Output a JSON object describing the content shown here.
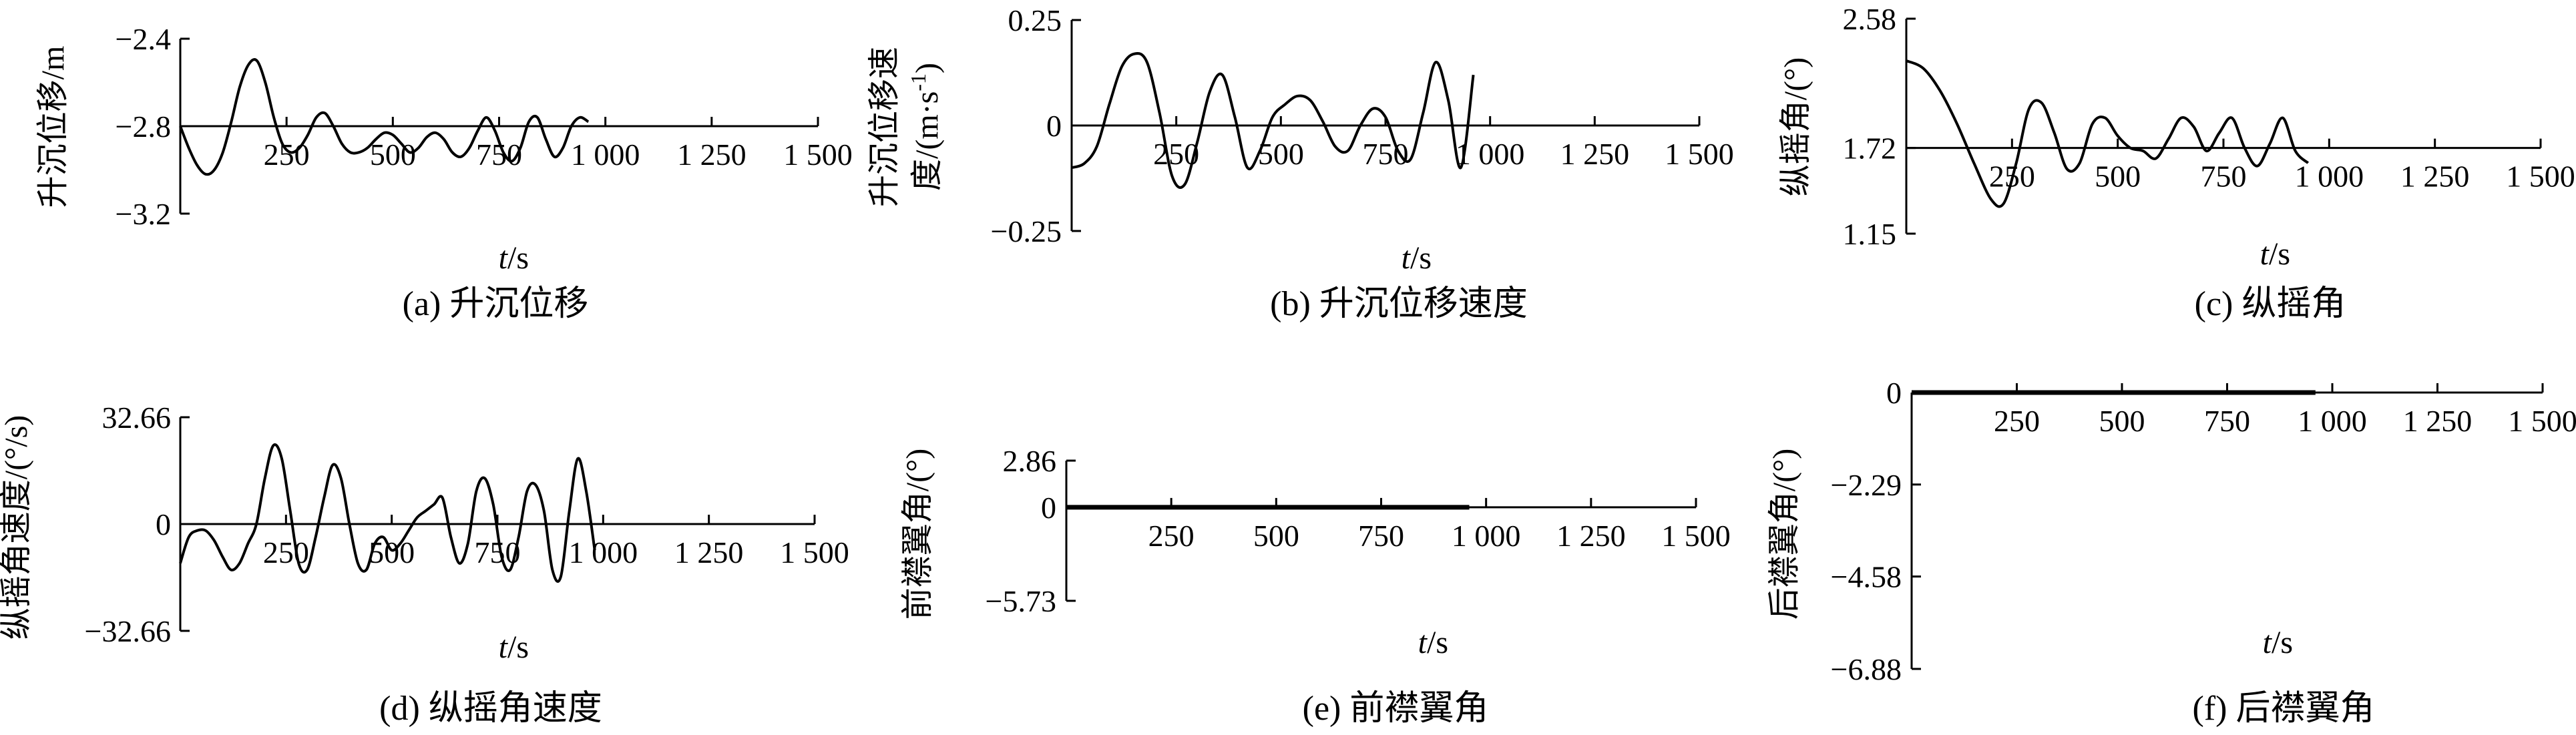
{
  "chart_data": [
    {
      "type": "line",
      "panel_caption": "(a) 升沉位移",
      "ylabel": "升沉位移/m",
      "xlabel_italic": "t",
      "xlabel_unit": "/s",
      "yticks": [
        "-2.4",
        "-2.8",
        "-3.2"
      ],
      "ytick_values": [
        -2.4,
        -2.8,
        -3.2
      ],
      "ylim": [
        -3.2,
        -2.4
      ],
      "xaxis_at": -2.8,
      "xticks": [
        "250",
        "500",
        "750",
        "1 000",
        "1 250",
        "1 500"
      ],
      "xtick_values": [
        250,
        500,
        750,
        1000,
        1250,
        1500
      ],
      "xlim": [
        0,
        1500
      ],
      "series": [
        {
          "x": [
            0,
            20,
            40,
            60,
            80,
            100,
            120,
            140,
            160,
            180,
            200,
            220,
            240,
            260,
            280,
            300,
            320,
            340,
            360,
            380,
            400,
            420,
            440,
            460,
            480,
            500,
            520,
            540,
            560,
            580,
            600,
            620,
            640,
            660,
            680,
            700,
            720,
            740,
            760,
            780,
            800,
            820,
            840,
            860,
            880,
            900,
            920,
            940,
            960
          ],
          "y": [
            -2.8,
            -2.9,
            -2.98,
            -3.02,
            -3.0,
            -2.92,
            -2.78,
            -2.62,
            -2.52,
            -2.5,
            -2.6,
            -2.76,
            -2.88,
            -2.92,
            -2.9,
            -2.84,
            -2.76,
            -2.74,
            -2.8,
            -2.88,
            -2.92,
            -2.92,
            -2.9,
            -2.86,
            -2.83,
            -2.84,
            -2.88,
            -2.92,
            -2.9,
            -2.85,
            -2.83,
            -2.86,
            -2.92,
            -2.94,
            -2.9,
            -2.82,
            -2.76,
            -2.82,
            -2.92,
            -2.96,
            -2.9,
            -2.78,
            -2.76,
            -2.86,
            -2.94,
            -2.9,
            -2.8,
            -2.76,
            -2.78
          ]
        }
      ]
    },
    {
      "type": "line",
      "panel_caption": "(b) 升沉位移速度",
      "ylabel_line1": "升沉位移速",
      "ylabel_line2": "度/(m·s",
      "ylabel_sup": "-1",
      "ylabel_end": ")",
      "xlabel_italic": "t",
      "xlabel_unit": "/s",
      "yticks": [
        "0.25",
        "0",
        "-0.25"
      ],
      "ytick_values": [
        0.25,
        0,
        -0.25
      ],
      "ylim": [
        -0.25,
        0.25
      ],
      "xaxis_at": 0,
      "xticks": [
        "250",
        "500",
        "750",
        "1 000",
        "1 250",
        "1 500"
      ],
      "xtick_values": [
        250,
        500,
        750,
        1000,
        1250,
        1500
      ],
      "xlim": [
        0,
        1500
      ],
      "series": [
        {
          "x": [
            0,
            30,
            60,
            90,
            120,
            150,
            180,
            210,
            240,
            270,
            300,
            330,
            360,
            390,
            420,
            450,
            480,
            510,
            540,
            570,
            600,
            630,
            660,
            690,
            720,
            750,
            780,
            810,
            840,
            870,
            900,
            930,
            960
          ],
          "y": [
            -0.1,
            -0.09,
            -0.05,
            0.05,
            0.14,
            0.17,
            0.15,
            0.03,
            -0.12,
            -0.14,
            -0.04,
            0.08,
            0.12,
            0.02,
            -0.1,
            -0.06,
            0.02,
            0.05,
            0.07,
            0.06,
            0.01,
            -0.05,
            -0.06,
            0.0,
            0.04,
            0.02,
            -0.06,
            -0.08,
            0.03,
            0.15,
            0.06,
            -0.1,
            0.12
          ]
        }
      ]
    },
    {
      "type": "line",
      "panel_caption": "(c) 纵摇角",
      "ylabel": "纵摇角/(°)",
      "xlabel_italic": "t",
      "xlabel_unit": "/s",
      "yticks": [
        "2.58",
        "1.72",
        "1.15"
      ],
      "ytick_values": [
        2.58,
        1.72,
        1.15
      ],
      "ylim": [
        1.15,
        2.58
      ],
      "xaxis_at": 1.72,
      "xticks": [
        "250",
        "500",
        "750",
        "1 000",
        "1 250",
        "1 500"
      ],
      "xtick_values": [
        250,
        500,
        750,
        1000,
        1250,
        1500
      ],
      "xlim": [
        0,
        1500
      ],
      "series": [
        {
          "x": [
            0,
            40,
            80,
            120,
            160,
            200,
            230,
            260,
            290,
            320,
            350,
            380,
            410,
            440,
            470,
            500,
            530,
            560,
            590,
            620,
            650,
            680,
            710,
            740,
            770,
            800,
            830,
            860,
            890,
            920,
            950
          ],
          "y": [
            2.3,
            2.25,
            2.1,
            1.88,
            1.62,
            1.38,
            1.35,
            1.62,
            1.98,
            2.02,
            1.82,
            1.58,
            1.62,
            1.88,
            1.92,
            1.8,
            1.72,
            1.7,
            1.65,
            1.78,
            1.92,
            1.86,
            1.7,
            1.82,
            1.92,
            1.72,
            1.6,
            1.75,
            1.92,
            1.7,
            1.62
          ]
        }
      ]
    },
    {
      "type": "line",
      "panel_caption": "(d) 纵摇角速度",
      "ylabel": "纵摇角速度/(°/s)",
      "xlabel_italic": "t",
      "xlabel_unit": "/s",
      "yticks": [
        "32.66",
        "0",
        "-32.66"
      ],
      "ytick_values": [
        32.66,
        0,
        -32.66
      ],
      "ylim": [
        -32.66,
        32.66
      ],
      "xaxis_at": 0,
      "xticks": [
        "250",
        "500",
        "750",
        "1 000",
        "1 250",
        "1 500"
      ],
      "xtick_values": [
        250,
        500,
        750,
        1000,
        1250,
        1500
      ],
      "xlim": [
        0,
        1500
      ],
      "series": [
        {
          "x": [
            0,
            20,
            40,
            60,
            80,
            100,
            120,
            140,
            160,
            180,
            200,
            220,
            240,
            260,
            280,
            300,
            320,
            340,
            360,
            380,
            400,
            420,
            440,
            460,
            480,
            500,
            520,
            540,
            560,
            580,
            600,
            620,
            640,
            660,
            680,
            700,
            720,
            740,
            760,
            780,
            800,
            820,
            840,
            860,
            880,
            900,
            920,
            940,
            960,
            980
          ],
          "y": [
            -12,
            -4,
            -2,
            -2,
            -5,
            -10,
            -14,
            -12,
            -6,
            0,
            14,
            24,
            20,
            4,
            -12,
            -14,
            -4,
            8,
            18,
            14,
            0,
            -12,
            -14,
            -6,
            -4,
            -8,
            -6,
            -2,
            2,
            4,
            6,
            8,
            -4,
            -12,
            -6,
            10,
            14,
            6,
            -10,
            -14,
            -4,
            10,
            12,
            4,
            -14,
            -16,
            4,
            20,
            10,
            -8
          ]
        }
      ]
    },
    {
      "type": "line",
      "panel_caption": "(e) 前襟翼角",
      "ylabel": "前襟翼角/(°)",
      "xlabel_italic": "t",
      "xlabel_unit": "/s",
      "yticks": [
        "2.86",
        "0",
        "-5.73"
      ],
      "ytick_values": [
        2.86,
        0,
        -5.73
      ],
      "ylim": [
        -5.73,
        2.86
      ],
      "xaxis_at": 0,
      "xticks": [
        "250",
        "500",
        "750",
        "1 000",
        "1 250",
        "1 500"
      ],
      "xtick_values": [
        250,
        500,
        750,
        1000,
        1250,
        1500
      ],
      "xlim": [
        0,
        1500
      ],
      "series": [
        {
          "x": [
            0,
            960
          ],
          "y": [
            0,
            0
          ]
        }
      ]
    },
    {
      "type": "line",
      "panel_caption": "(f) 后襟翼角",
      "ylabel": "后襟翼角/(°)",
      "xlabel_italic": "t",
      "xlabel_unit": "/s",
      "yticks": [
        "0",
        "-2.29",
        "-4.58",
        "-6.88"
      ],
      "ytick_values": [
        0,
        -2.29,
        -4.58,
        -6.88
      ],
      "ylim": [
        -6.88,
        0
      ],
      "xaxis_at": 0,
      "xticks": [
        "250",
        "500",
        "750",
        "1 000",
        "1 250",
        "1 500"
      ],
      "xtick_values": [
        250,
        500,
        750,
        1000,
        1250,
        1500
      ],
      "xlim": [
        0,
        1500
      ],
      "series": [
        {
          "x": [
            0,
            960
          ],
          "y": [
            0,
            0
          ]
        }
      ]
    }
  ]
}
